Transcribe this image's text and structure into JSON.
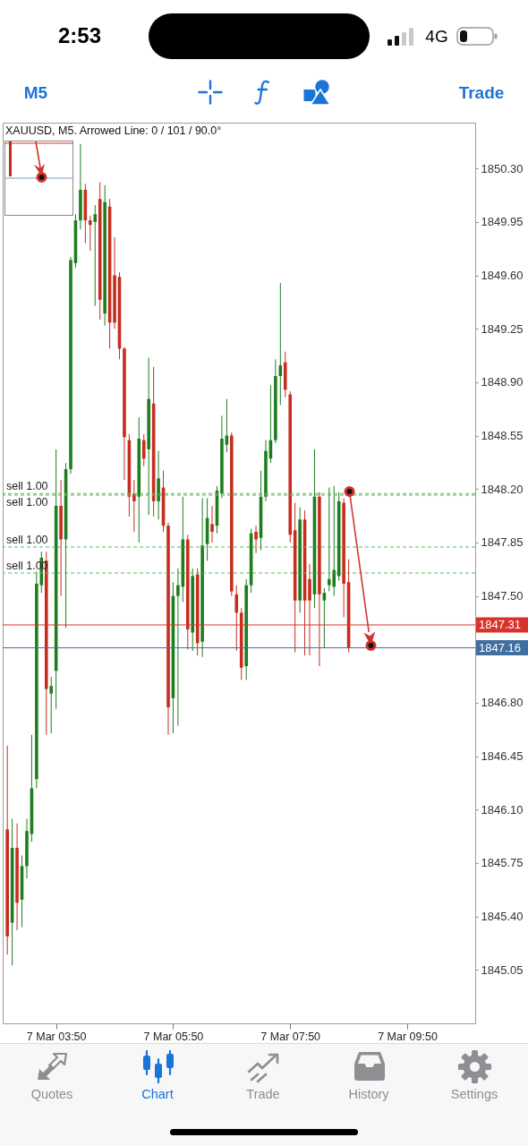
{
  "chart_data": {
    "type": "candlestick",
    "title": "XAUUSD, M5. Arrowed Line: 0 / 101 / 90.0°",
    "categories": [
      null,
      null,
      null,
      null,
      null,
      null,
      null,
      null,
      null,
      null,
      "7 Mar 03:50",
      null,
      null,
      null,
      null,
      null,
      null,
      null,
      null,
      null,
      null,
      null,
      null,
      null,
      null,
      null,
      null,
      null,
      null,
      null,
      null,
      null,
      null,
      null,
      "7 Mar 05:50",
      null,
      null,
      null,
      null,
      null,
      null,
      null,
      null,
      null,
      null,
      null,
      null,
      null,
      null,
      null,
      null,
      null,
      null,
      null,
      null,
      null,
      null,
      null,
      "7 Mar 07:50",
      null,
      null,
      null,
      null,
      null,
      null,
      null,
      null,
      null,
      null,
      null,
      null,
      null,
      null,
      null,
      null,
      null,
      null,
      null,
      null,
      null,
      null,
      null,
      "7 Mar 09:50",
      null,
      null,
      null,
      null,
      null,
      null,
      null,
      null,
      null,
      null,
      null,
      null,
      null
    ],
    "ohlc": [
      [
        1845.97,
        1846.52,
        1845.15,
        1845.27
      ],
      [
        1845.36,
        1846.04,
        1845.08,
        1845.85
      ],
      [
        1845.85,
        1846.01,
        1845.31,
        1845.49
      ],
      [
        1845.51,
        1845.8,
        1845.33,
        1845.73
      ],
      [
        1845.73,
        1846.04,
        1845.65,
        1845.96
      ],
      [
        1845.94,
        1846.59,
        1845.89,
        1846.24
      ],
      [
        1846.3,
        1847.66,
        1846.24,
        1847.58
      ],
      [
        1847.57,
        1847.79,
        1847.52,
        1847.75
      ],
      [
        1847.73,
        1847.79,
        1846.59,
        1846.89
      ],
      [
        1846.86,
        1846.97,
        1846.6,
        1846.91
      ],
      [
        1847.01,
        1848.46,
        1846.76,
        1848.09
      ],
      [
        1848.09,
        1848.26,
        1847.5,
        1847.87
      ],
      [
        1847.87,
        1848.37,
        1847.29,
        1848.33
      ],
      [
        1848.33,
        1849.72,
        1848.3,
        1849.7
      ],
      [
        1849.68,
        1850.0,
        1849.65,
        1849.96
      ],
      [
        1849.96,
        1850.46,
        1849.9,
        1850.16
      ],
      [
        1850.16,
        1850.2,
        1849.81,
        1849.96
      ],
      [
        1849.96,
        1849.99,
        1849.76,
        1849.93
      ],
      [
        1849.95,
        1850.06,
        1849.4,
        1850.0
      ],
      [
        1850.1,
        1850.21,
        1849.31,
        1849.44
      ],
      [
        1849.35,
        1850.19,
        1849.27,
        1850.08
      ],
      [
        1850.05,
        1850.1,
        1849.12,
        1849.29
      ],
      [
        1849.6,
        1849.85,
        1849.25,
        1849.29
      ],
      [
        1849.59,
        1849.62,
        1849.05,
        1849.12
      ],
      [
        1849.12,
        1849.13,
        1848.26,
        1848.54
      ],
      [
        1848.52,
        1848.56,
        1848.02,
        1848.15
      ],
      [
        1848.17,
        1848.26,
        1847.92,
        1848.12
      ],
      [
        1848.15,
        1848.67,
        1847.85,
        1848.53
      ],
      [
        1848.52,
        1848.56,
        1848.35,
        1848.4
      ],
      [
        1848.46,
        1849.06,
        1848.03,
        1848.79
      ],
      [
        1848.76,
        1849.0,
        1848.02,
        1848.12
      ],
      [
        1848.12,
        1848.45,
        1848.0,
        1848.27
      ],
      [
        1848.21,
        1848.32,
        1847.92,
        1847.96
      ],
      [
        1847.96,
        1847.98,
        1846.59,
        1846.77
      ],
      [
        1846.83,
        1847.59,
        1846.6,
        1847.5
      ],
      [
        1847.5,
        1847.68,
        1846.65,
        1847.57
      ],
      [
        1847.56,
        1848.15,
        1847.46,
        1847.87
      ],
      [
        1847.87,
        1847.9,
        1847.15,
        1847.28
      ],
      [
        1847.26,
        1847.68,
        1847.14,
        1847.63
      ],
      [
        1847.64,
        1847.68,
        1847.11,
        1847.19
      ],
      [
        1847.2,
        1848.14,
        1847.1,
        1847.83
      ],
      [
        1847.84,
        1848.14,
        1847.73,
        1848.01
      ],
      [
        1847.97,
        1848.09,
        1847.85,
        1847.92
      ],
      [
        1847.96,
        1848.22,
        1847.91,
        1848.19
      ],
      [
        1848.17,
        1848.68,
        1848.14,
        1848.53
      ],
      [
        1848.49,
        1848.79,
        1848.44,
        1848.55
      ],
      [
        1848.55,
        1848.57,
        1847.5,
        1847.53
      ],
      [
        1847.51,
        1847.57,
        1847.14,
        1847.39
      ],
      [
        1847.39,
        1847.42,
        1846.95,
        1847.03
      ],
      [
        1847.04,
        1847.61,
        1846.95,
        1847.57
      ],
      [
        1847.57,
        1847.94,
        1847.52,
        1847.91
      ],
      [
        1847.92,
        1847.96,
        1847.78,
        1847.87
      ],
      [
        1847.88,
        1848.32,
        1847.8,
        1848.15
      ],
      [
        1848.15,
        1848.52,
        1848.12,
        1848.45
      ],
      [
        1848.4,
        1848.88,
        1848.37,
        1848.52
      ],
      [
        1848.52,
        1849.05,
        1848.5,
        1848.94
      ],
      [
        1848.94,
        1849.55,
        1848.75,
        1849.01
      ],
      [
        1849.03,
        1849.1,
        1848.8,
        1848.85
      ],
      [
        1848.82,
        1848.84,
        1847.85,
        1847.9
      ],
      [
        1847.93,
        1848.11,
        1847.13,
        1847.47
      ],
      [
        1847.47,
        1848.08,
        1847.39,
        1848.0
      ],
      [
        1848.0,
        1848.06,
        1847.11,
        1847.47
      ],
      [
        1847.61,
        1847.71,
        1847.11,
        1847.47
      ],
      [
        1847.51,
        1848.46,
        1847.42,
        1848.15
      ],
      [
        1848.15,
        1848.18,
        1847.04,
        1847.51
      ],
      [
        1847.47,
        1847.55,
        1847.16,
        1847.52
      ],
      [
        1847.57,
        1848.21,
        1847.53,
        1847.61
      ],
      [
        1847.56,
        1848.22,
        1847.5,
        1847.67
      ],
      [
        1847.63,
        1848.18,
        1847.6,
        1848.12
      ],
      [
        1848.11,
        1848.14,
        1847.36,
        1847.58
      ],
      [
        1847.59,
        1847.74,
        1847.13,
        1847.16
      ],
      null,
      null,
      null,
      null,
      null,
      null,
      null,
      null,
      null,
      null,
      null,
      null,
      null,
      null,
      null,
      null,
      null,
      null,
      null,
      null,
      null,
      null,
      null,
      null,
      null
    ],
    "colors": [
      "#c62d1f",
      "#1e7d1e",
      "#c62d1f",
      "#1e7d1e",
      "#1e7d1e",
      "#1e7d1e",
      "#1e7d1e",
      "#1e7d1e",
      "#c62d1f",
      "#1e7d1e",
      "#1e7d1e",
      "#c62d1f",
      "#1e7d1e",
      "#1e7d1e",
      "#1e7d1e",
      "#1e7d1e",
      "#c62d1f",
      "#c62d1f",
      "#1e7d1e",
      "#c62d1f",
      "#1e7d1e",
      "#c62d1f",
      "#c62d1f",
      "#c62d1f",
      "#c62d1f",
      "#c62d1f",
      "#c62d1f",
      "#1e7d1e",
      "#c62d1f",
      "#1e7d1e",
      "#c62d1f",
      "#1e7d1e",
      "#c62d1f",
      "#c62d1f",
      "#1e7d1e",
      "#1e7d1e",
      "#1e7d1e",
      "#c62d1f",
      "#1e7d1e",
      "#c62d1f",
      "#1e7d1e",
      "#1e7d1e",
      "#c62d1f",
      "#1e7d1e",
      "#1e7d1e",
      "#1e7d1e",
      "#c62d1f",
      "#c62d1f",
      "#c62d1f",
      "#1e7d1e",
      "#1e7d1e",
      "#c62d1f",
      "#1e7d1e",
      "#1e7d1e",
      "#1e7d1e",
      "#1e7d1e",
      "#1e7d1e",
      "#c62d1f",
      "#c62d1f",
      "#c62d1f",
      "#1e7d1e",
      "#c62d1f",
      "#c62d1f",
      "#1e7d1e",
      "#c62d1f",
      "#1e7d1e",
      "#1e7d1e",
      "#1e7d1e",
      "#1e7d1e",
      "#c62d1f",
      "#c62d1f",
      null,
      null,
      null,
      null,
      null,
      null,
      null,
      null,
      null,
      null,
      null,
      null,
      null,
      null,
      null,
      null,
      null,
      null,
      null,
      null,
      null,
      null,
      null,
      null,
      null
    ],
    "ylim": [
      1844.7,
      1850.6
    ],
    "yticks": [
      {
        "value": 1850.3,
        "label": "1850.30"
      },
      1849.95,
      {
        "value": 1849.6,
        "label": "1849.60"
      },
      1849.25,
      {
        "value": 1848.9,
        "label": "1848.90"
      },
      1848.55,
      {
        "value": 1848.2,
        "label": "1848.20"
      },
      1847.85,
      {
        "value": 1847.5,
        "label": "1847.50"
      },
      {
        "value": 1846.8,
        "label": "1846.80"
      },
      1846.45,
      {
        "value": 1846.1,
        "label": "1846.10"
      },
      1845.75,
      {
        "value": 1845.4,
        "label": "1845.40"
      },
      1845.05
    ],
    "ref_lines": [
      {
        "axis": "y",
        "value": 1848.17,
        "label": "sell 1.00",
        "color": "#5cb85c",
        "line_style": "dashed"
      },
      {
        "axis": "y",
        "value": 1848.16,
        "label": "sell 1.00",
        "color": "#5cb85c",
        "line_style": "dashed"
      },
      {
        "axis": "y",
        "value": 1847.82,
        "label": "sell 1.00",
        "color": "#5cb85c",
        "line_style": "dashed"
      },
      {
        "axis": "y",
        "value": 1847.65,
        "label": "sell 1.00",
        "color": "#5cb85c",
        "line_style": "dashed"
      },
      {
        "axis": "y",
        "value": 1847.31,
        "label": "1847.31",
        "color": "#d9342b",
        "line_style": "solid"
      },
      {
        "axis": "y",
        "value": 1847.16,
        "label": "1847.16",
        "color": "#3f6e9f",
        "line_style": "solid"
      }
    ],
    "annotations": [
      "2:53",
      "4G",
      "M5",
      "Trade",
      "Quotes",
      "Chart",
      "Trade",
      "History",
      "Settings"
    ]
  }
}
